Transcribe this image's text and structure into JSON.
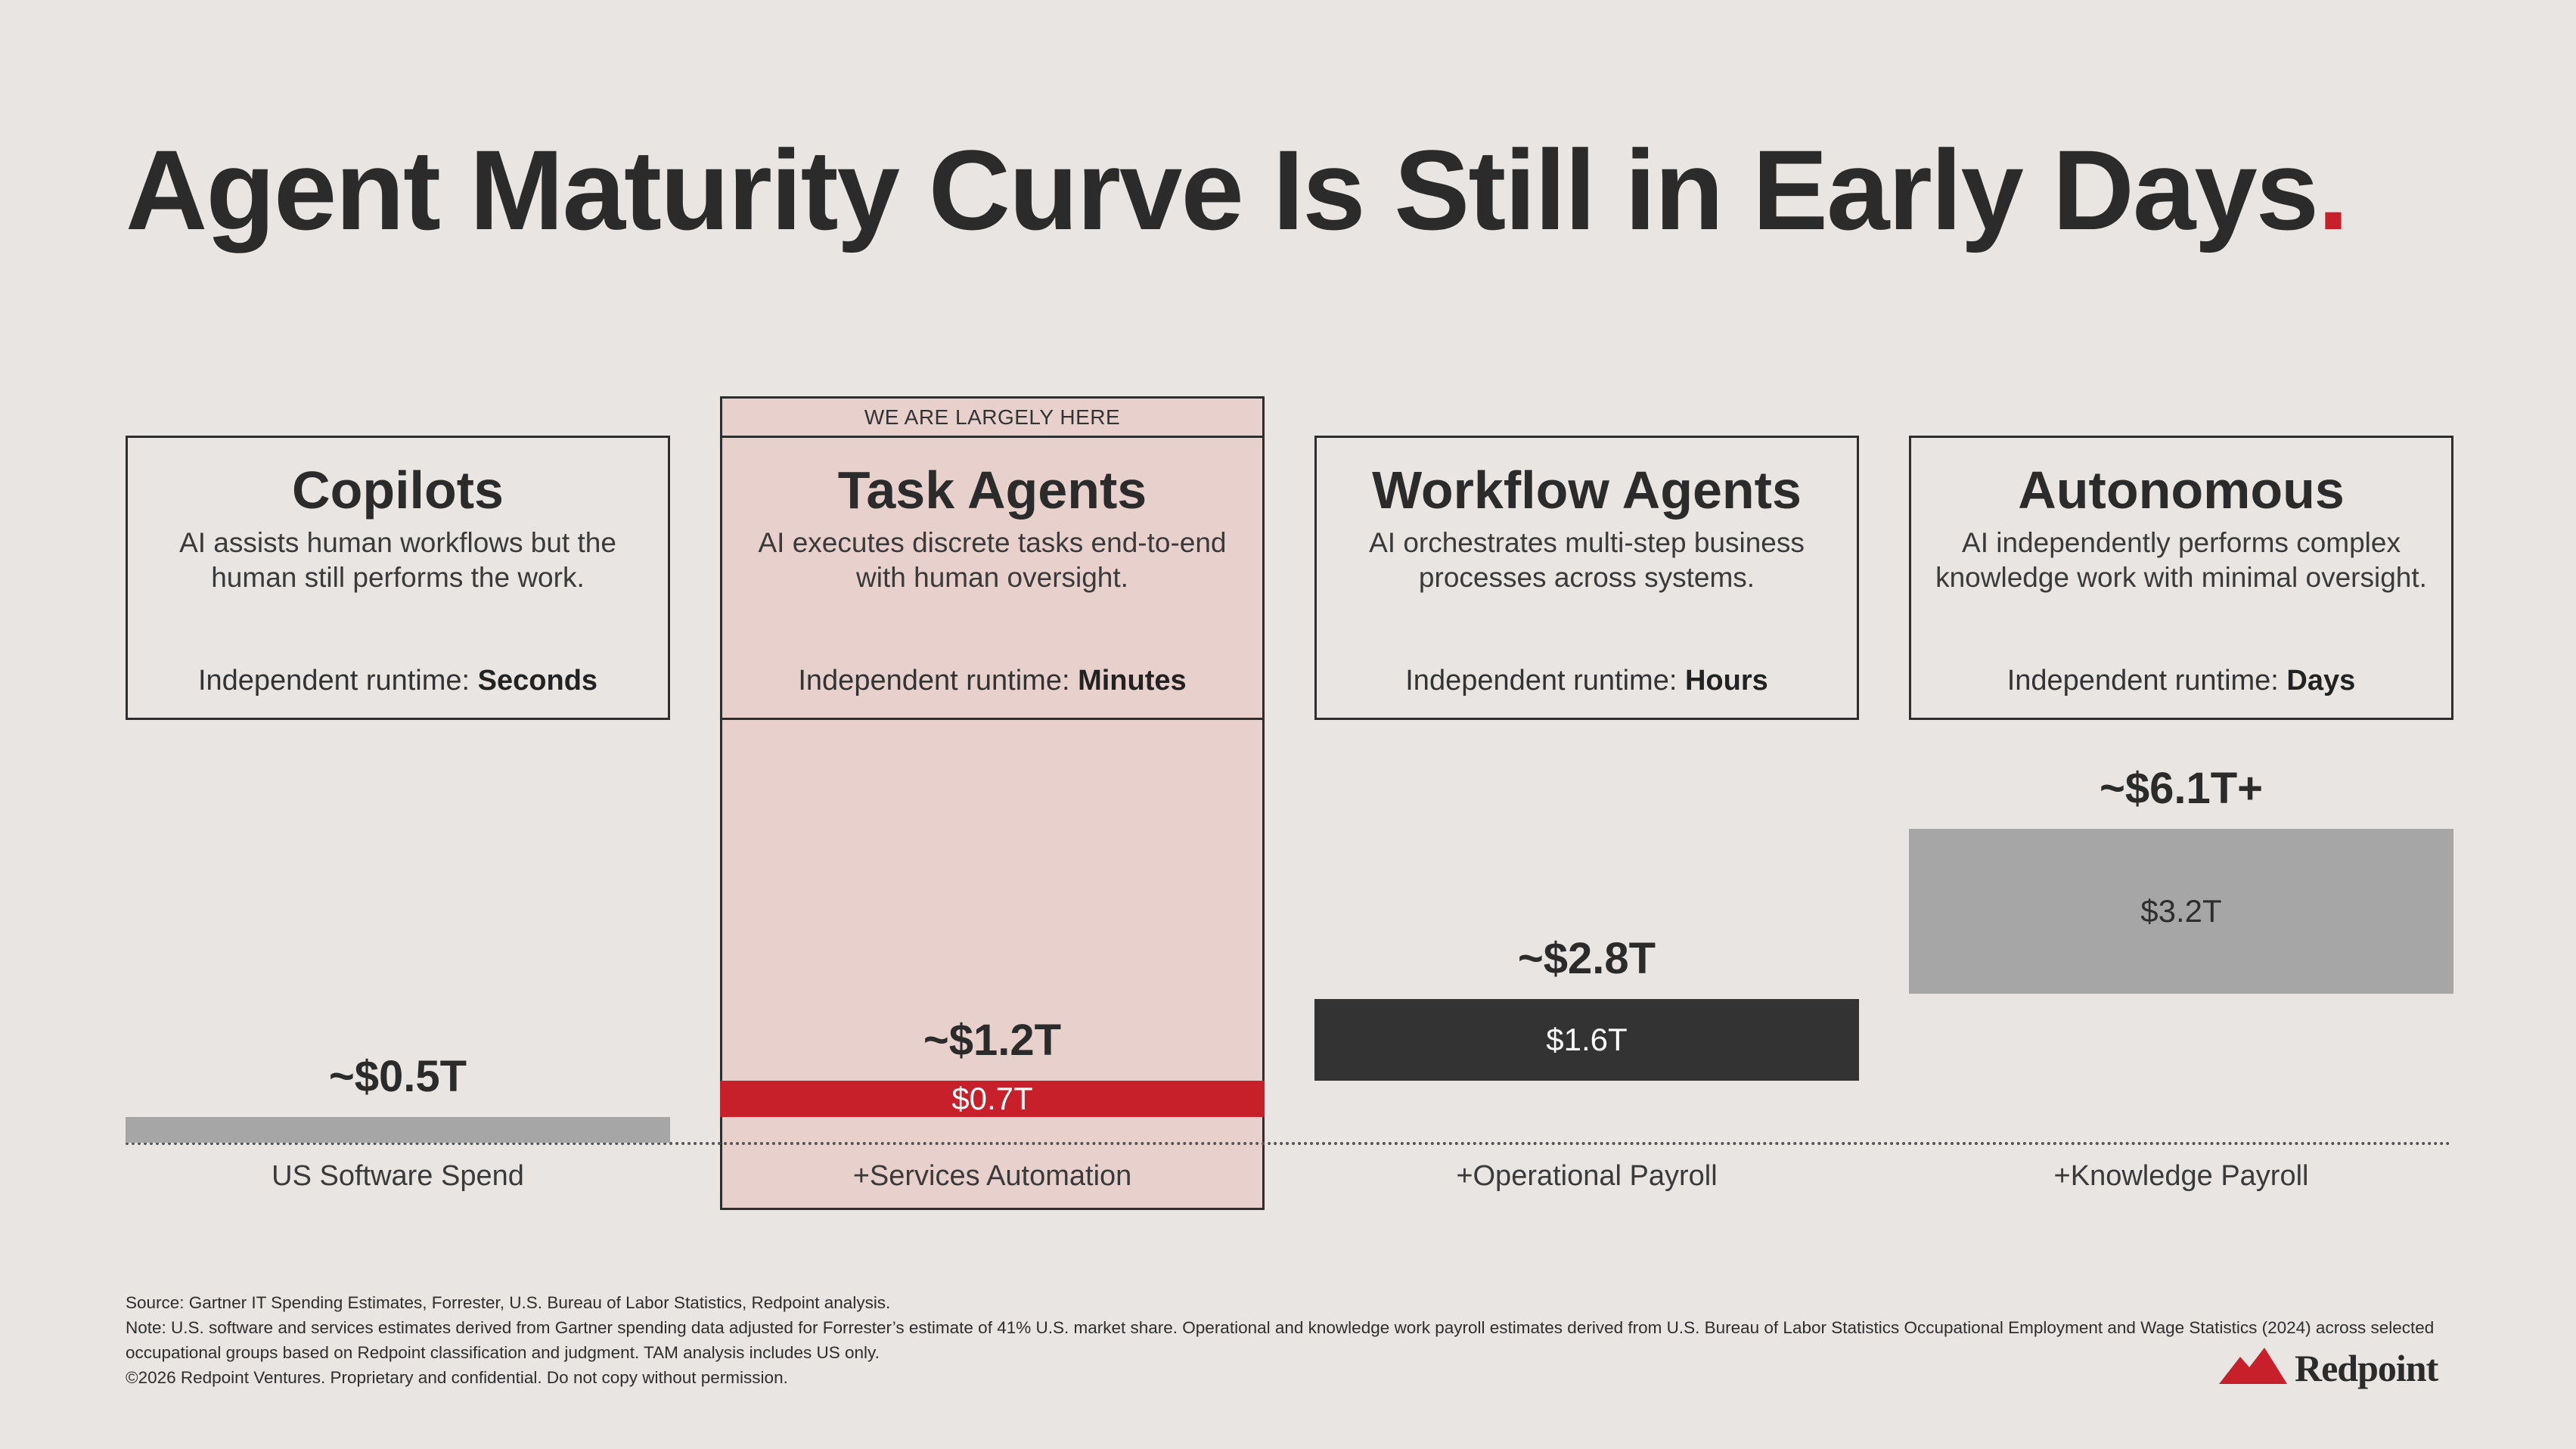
{
  "title": "Agent Maturity Curve Is Still in Early Days",
  "title_dot": ".",
  "highlight_banner": "WE ARE LARGELY HERE",
  "chart_data": {
    "type": "bar",
    "title": "Agent Maturity Curve Is Still in Early Days",
    "unit": "US$ trillions",
    "categories": [
      "US Software Spend",
      "+Services Automation",
      "+Operational Payroll",
      "+Knowledge Payroll"
    ],
    "stages": [
      {
        "name": "Copilots",
        "description": "AI assists human workflows but the human still performs the work.",
        "runtime_prefix": "Independent runtime: ",
        "runtime_value": "Seconds",
        "category": "US Software Spend",
        "segment_value": 0.5,
        "segment_label": "",
        "cumulative_total": 0.5,
        "total_label": "~$0.5T",
        "color": "#a6a6a6",
        "text_color": "#2e2e2e"
      },
      {
        "name": "Task Agents",
        "description": "AI executes discrete tasks end-to-end with human oversight.",
        "runtime_prefix": "Independent runtime: ",
        "runtime_value": "Minutes",
        "category": "+Services Automation",
        "segment_value": 0.7,
        "segment_label": "$0.7T",
        "cumulative_total": 1.2,
        "total_label": "~$1.2T",
        "color": "#c8202a",
        "text_color": "#ffffff"
      },
      {
        "name": "Workflow Agents",
        "description": "AI orchestrates multi-step business processes across systems.",
        "runtime_prefix": "Independent runtime: ",
        "runtime_value": "Hours",
        "category": "+Operational Payroll",
        "segment_value": 1.6,
        "segment_label": "$1.6T",
        "cumulative_total": 2.8,
        "total_label": "~$2.8T",
        "color": "#333333",
        "text_color": "#ffffff"
      },
      {
        "name": "Autonomous",
        "description": "AI independently performs complex knowledge work with minimal oversight.",
        "runtime_prefix": "Independent runtime: ",
        "runtime_value": "Days",
        "category": "+Knowledge Payroll",
        "segment_value": 3.2,
        "segment_label": "$3.2T",
        "cumulative_total": 6.1,
        "total_label": "~$6.1T+",
        "color": "#a6a6a6",
        "text_color": "#2e2e2e"
      }
    ]
  },
  "footer": {
    "source": "Source: Gartner IT Spending Estimates, Forrester, U.S. Bureau of Labor Statistics, Redpoint analysis.",
    "note": "Note: U.S. software and services estimates derived from Gartner spending data adjusted for Forrester’s estimate of 41% U.S. market share. Operational and knowledge work payroll estimates derived from U.S. Bureau of Labor Statistics Occupational Employment and Wage Statistics (2024) across selected occupational groups based on Redpoint classification and judgment. TAM analysis includes US only.",
    "copyright": "©2026 Redpoint Ventures. Proprietary and confidential. Do not copy without permission."
  },
  "brand": {
    "name": "Redpoint",
    "accent": "#c8202a",
    "background": "#e8e5e2",
    "highlight": "#e8d0cc"
  }
}
